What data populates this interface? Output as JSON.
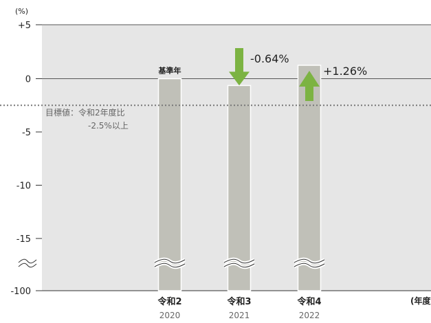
{
  "chart_data": {
    "type": "bar",
    "unit": "(%)",
    "x_unit": "(年度",
    "categories": [
      {
        "label": "令和2",
        "year": "2020"
      },
      {
        "label": "令和3",
        "year": "2021"
      },
      {
        "label": "令和4",
        "year": "2022"
      }
    ],
    "values": [
      0,
      -0.64,
      1.26
    ],
    "y_ticks": [
      "+5",
      "0",
      "-5",
      "-10",
      "-15",
      "-100"
    ],
    "ylim": [
      -100,
      5
    ],
    "axis_break": true,
    "baseline": 0,
    "base_label": "基準年",
    "changes": [
      {
        "category_index": 1,
        "text": "-0.64%",
        "direction": "down"
      },
      {
        "category_index": 2,
        "text": "+1.26%",
        "direction": "up"
      }
    ],
    "target": {
      "value": -2.5,
      "label_line1": "目標値：令和2年度比",
      "label_line2": "-2.5%以上"
    },
    "colors": {
      "plot_background": "#e6e6e6",
      "bar": "#c0c0b8",
      "arrow": "#7cb342",
      "target_line": "#777777"
    }
  }
}
